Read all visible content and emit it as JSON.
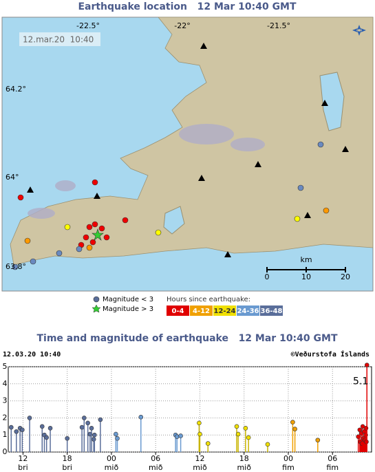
{
  "map": {
    "title": "Earthquake location   12 Mar 10:40 GMT",
    "timestamp": "12.mar.20  10:40",
    "lon_labels": [
      "-22.5°",
      "-22°",
      "-21.5°"
    ],
    "lat_labels": [
      "64.2°",
      "64°",
      "63.8°"
    ],
    "scale": {
      "unit": "km",
      "labels": [
        "0",
        "10",
        "20"
      ]
    },
    "legend": {
      "small": "Magnitude < 3",
      "large": "Magnitude > 3",
      "hours_title": "Hours since earthquake:"
    }
  },
  "chart_data": {
    "type": "scatter",
    "title": "Time and magnitude of earthquake   12 Mar 10:40 GMT",
    "timestamp": "12.03.20 10:40",
    "credit": "©Veðurstofa Íslands",
    "xlim": [
      10,
      59.3
    ],
    "ylim": [
      0,
      5
    ],
    "yticks": [
      0,
      1,
      2,
      3,
      4,
      5
    ],
    "xticks": [
      12,
      18,
      {
        "value": 24,
        "label": "00"
      },
      {
        "value": 30,
        "label": "06"
      },
      {
        "value": 36,
        "label": "12"
      },
      {
        "value": 42,
        "label": "18"
      },
      {
        "value": 48,
        "label": "00"
      },
      {
        "value": 54,
        "label": "06"
      }
    ],
    "xtick_days": [
      "bri",
      "bri",
      "mið",
      "mið",
      "mið",
      "mið",
      "fim",
      "fim"
    ],
    "grid": true,
    "series": [
      {
        "name": "0-4",
        "color": "#e00000",
        "x": [
          57.5,
          57.7,
          57.8,
          57.9,
          58.0,
          58.1,
          58.2,
          58.3,
          58.4,
          58.5,
          58.55,
          58.6,
          58.67
        ],
        "values": [
          0.9,
          1.3,
          0.6,
          1.1,
          0.5,
          1.5,
          0.8,
          1.2,
          0.7,
          1.0,
          1.4,
          0.6,
          5.1
        ],
        "value_labels": [
          null,
          null,
          null,
          null,
          null,
          null,
          null,
          null,
          null,
          null,
          null,
          null,
          "5.1"
        ]
      },
      {
        "name": "4-12",
        "color": "#f0a000",
        "x": [
          48.6,
          48.9,
          52.0
        ],
        "values": [
          1.75,
          1.35,
          0.7
        ]
      },
      {
        "name": "12-24",
        "color": "#f0e000",
        "x": [
          35.9,
          36.0,
          37.1,
          41.0,
          41.2,
          42.2,
          42.6,
          45.2
        ],
        "values": [
          1.7,
          1.05,
          0.5,
          1.5,
          1.05,
          1.4,
          0.85,
          0.45
        ]
      },
      {
        "name": "24-36",
        "color": "#6a9ad0",
        "x": [
          24.6,
          24.8,
          28.0,
          32.7,
          32.9,
          33.4
        ],
        "values": [
          1.05,
          0.8,
          2.05,
          1.0,
          0.9,
          0.95
        ]
      },
      {
        "name": "36-48",
        "color": "#5a6e9a",
        "x": [
          10.4,
          11.1,
          11.6,
          11.9,
          12.9,
          14.6,
          14.9,
          15.2,
          15.7,
          18.0,
          20.0,
          20.3,
          20.8,
          21.1,
          21.3,
          21.6,
          21.7,
          22.5
        ],
        "values": [
          1.45,
          1.2,
          1.4,
          1.3,
          2.0,
          1.5,
          1.0,
          0.85,
          1.4,
          0.8,
          1.45,
          2.0,
          1.7,
          1.05,
          1.4,
          0.75,
          1.0,
          1.9
        ]
      }
    ]
  }
}
